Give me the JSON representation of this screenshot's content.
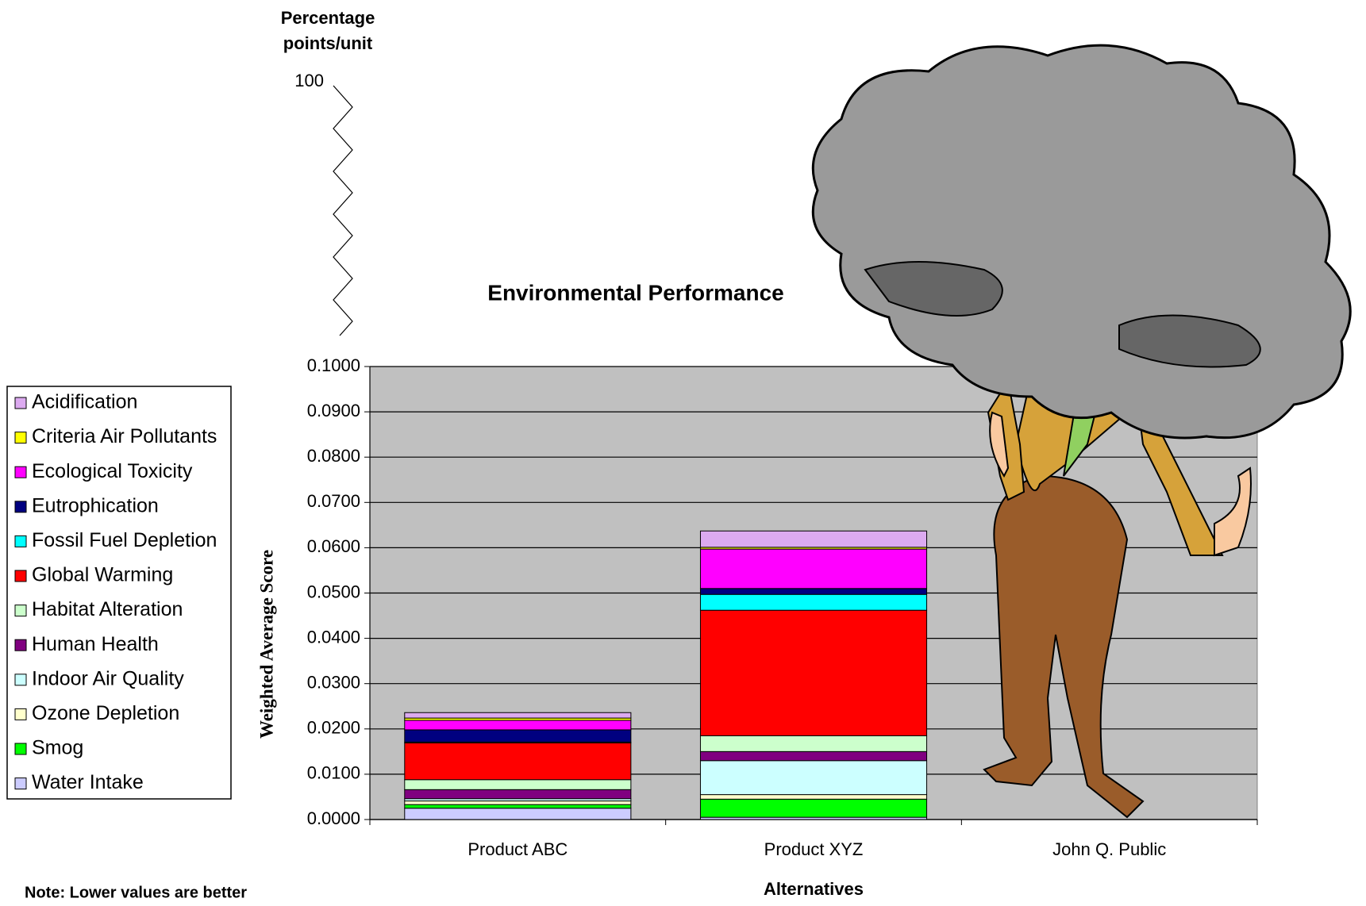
{
  "chart_data": {
    "type": "stacked_bar",
    "title": "Environmental Performance",
    "y_axis_label": "Weighted Average Score",
    "x_axis_label": "Alternatives",
    "unit_label": [
      "Percentage",
      "points/unit"
    ],
    "axis_break_label": "100",
    "note": "Note: Lower values are better",
    "categories": [
      "Product ABC",
      "Product XYZ",
      "John Q. Public"
    ],
    "series": [
      {
        "name": "Acidification",
        "color": "#dcaaf0",
        "values": [
          0.0012,
          0.0036,
          null
        ]
      },
      {
        "name": "Criteria Air Pollutants",
        "color": "#ffff00",
        "values": [
          0.0005,
          0.0004,
          null
        ]
      },
      {
        "name": "Ecological Toxicity",
        "color": "#ff00ff",
        "values": [
          0.0021,
          0.0087,
          null
        ]
      },
      {
        "name": "Eutrophication",
        "color": "#000080",
        "values": [
          0.0027,
          0.0013,
          null
        ]
      },
      {
        "name": "Fossil Fuel Depletion",
        "color": "#00ffff",
        "values": [
          0.0002,
          0.0035,
          null
        ]
      },
      {
        "name": "Global Warming",
        "color": "#ff0000",
        "values": [
          0.0081,
          0.0277,
          null
        ]
      },
      {
        "name": "Habitat Alteration",
        "color": "#ccffcc",
        "values": [
          0.0022,
          0.0035,
          null
        ]
      },
      {
        "name": "Human Health",
        "color": "#800080",
        "values": [
          0.002,
          0.002,
          null
        ]
      },
      {
        "name": "Indoor Air Quality",
        "color": "#ccffff",
        "values": [
          0.0005,
          0.0075,
          null
        ]
      },
      {
        "name": "Ozone Depletion",
        "color": "#ffffcc",
        "values": [
          0.0008,
          0.001,
          null
        ]
      },
      {
        "name": "Smog",
        "color": "#00ff00",
        "values": [
          0.0008,
          0.004,
          null
        ]
      },
      {
        "name": "Water Intake",
        "color": "#ccccff",
        "values": [
          0.0025,
          0.0005,
          null
        ]
      }
    ],
    "ylim": [
      0,
      0.1
    ],
    "yticks": [
      {
        "value": 0,
        "label": "0.0000"
      },
      {
        "value": 0.01,
        "label": "0.0100"
      },
      {
        "value": 0.02,
        "label": "0.0200"
      },
      {
        "value": 0.03,
        "label": "0.0300"
      },
      {
        "value": 0.04,
        "label": "0.0400"
      },
      {
        "value": 0.05,
        "label": "0.0500"
      },
      {
        "value": 0.06,
        "label": "0.0600"
      },
      {
        "value": 0.07,
        "label": "0.0700"
      },
      {
        "value": 0.08,
        "label": "0.0800"
      },
      {
        "value": 0.09,
        "label": "0.0900"
      },
      {
        "value": 0.1,
        "label": "0.1000"
      }
    ],
    "grid": true,
    "plot_background": "#c0c0c0",
    "legend_position": "left"
  }
}
